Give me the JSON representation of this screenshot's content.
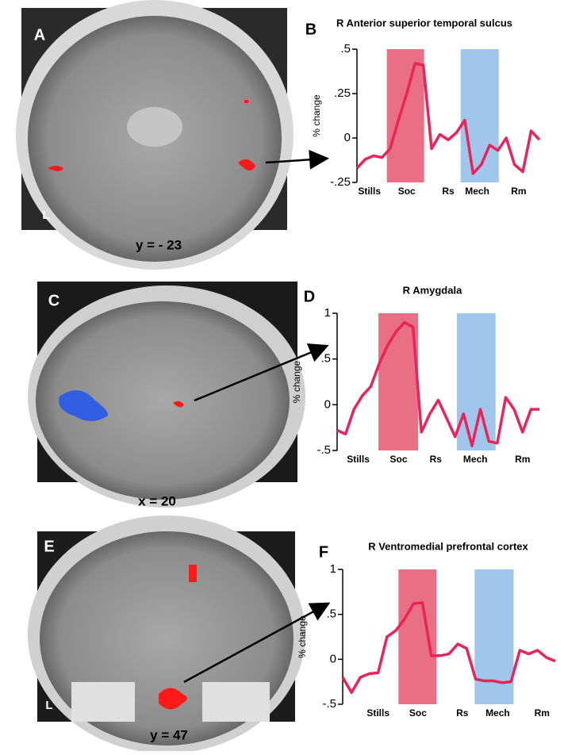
{
  "images": [
    {
      "label": "A",
      "caption": "y = - 23",
      "side": "L"
    },
    {
      "label": "C",
      "caption": "x = 20"
    },
    {
      "label": "E",
      "caption": "y = 47",
      "side": "L"
    }
  ],
  "chart_data": [
    {
      "type": "line",
      "label": "B",
      "title": "R Anterior superior temporal sulcus",
      "ylabel": "% change",
      "x": [
        0,
        1,
        2,
        3,
        4,
        5,
        6,
        7,
        8,
        9,
        10,
        11,
        12,
        13,
        14,
        15,
        16,
        17,
        18,
        19,
        20,
        21,
        22
      ],
      "series": [
        {
          "color": "#e8245a",
          "values": [
            -0.17,
            -0.12,
            -0.1,
            -0.11,
            -0.06,
            0.1,
            0.25,
            0.42,
            0.41,
            -0.06,
            0.02,
            -0.01,
            0.03,
            0.1,
            -0.2,
            -0.15,
            -0.04,
            -0.07,
            0.0,
            -0.15,
            -0.19,
            0.04,
            -0.01
          ]
        }
      ],
      "spans": [
        {
          "xmin": 3.6,
          "xmax": 8.1,
          "color": "#e4566f"
        },
        {
          "xmin": 12.5,
          "xmax": 17.1,
          "color": "#8fbce9"
        }
      ],
      "xlim": [
        0,
        22
      ],
      "ylim": [
        -0.25,
        0.5
      ],
      "xticks": [
        {
          "value": 1.5,
          "label": "Stills"
        },
        {
          "value": 6,
          "label": "Soc"
        },
        {
          "value": 11,
          "label": "Rs"
        },
        {
          "value": 14.5,
          "label": "Mech"
        },
        {
          "value": 19.5,
          "label": "Rm"
        }
      ],
      "yticks": [
        {
          "value": 0.5,
          "label": ".5"
        },
        {
          "value": 0.25,
          "label": ".25"
        },
        0,
        {
          "value": -0.25,
          "label": "-.25"
        }
      ]
    },
    {
      "type": "line",
      "label": "D",
      "title": "R Amygdala",
      "ylabel": "% change",
      "x": [
        0,
        1,
        2,
        3,
        4,
        5,
        6,
        7,
        8,
        9,
        10,
        11,
        12,
        13,
        14,
        15,
        16,
        17,
        18,
        19,
        20,
        21,
        22,
        23,
        24
      ],
      "series": [
        {
          "color": "#e8245a",
          "values": [
            -0.28,
            -0.32,
            -0.05,
            0.1,
            0.2,
            0.45,
            0.65,
            0.8,
            0.9,
            0.85,
            -0.3,
            -0.1,
            0.05,
            -0.15,
            -0.35,
            -0.1,
            -0.45,
            -0.05,
            -0.4,
            -0.42,
            0.08,
            -0.05,
            -0.3,
            -0.05,
            -0.05
          ]
        }
      ],
      "spans": [
        {
          "xmin": 4.9,
          "xmax": 9.6,
          "color": "#e4566f"
        },
        {
          "xmin": 14.2,
          "xmax": 18.8,
          "color": "#8fbce9"
        }
      ],
      "xlim": [
        0,
        24
      ],
      "ylim": [
        -0.5,
        1
      ],
      "xticks": [
        {
          "value": 2.5,
          "label": "Stills"
        },
        {
          "value": 7.3,
          "label": "Soc"
        },
        {
          "value": 11.7,
          "label": "Rs"
        },
        {
          "value": 16.4,
          "label": "Mech"
        },
        {
          "value": 22,
          "label": "Rm"
        }
      ],
      "yticks": [
        1,
        {
          "value": 0.5,
          "label": ".5"
        },
        0,
        {
          "value": -0.5,
          "label": "-.5"
        }
      ]
    },
    {
      "type": "line",
      "label": "F",
      "title": "R Ventromedial prefrontal cortex",
      "ylabel": "% change",
      "x": [
        0,
        1,
        2,
        3,
        4,
        5,
        6,
        7,
        8,
        9,
        10,
        11,
        12,
        13,
        14,
        15,
        16,
        17,
        18,
        19,
        20,
        21,
        22,
        23,
        24
      ],
      "series": [
        {
          "color": "#e8245a",
          "values": [
            -0.2,
            -0.37,
            -0.2,
            -0.16,
            -0.15,
            0.25,
            0.32,
            0.45,
            0.62,
            0.63,
            0.04,
            0.04,
            0.06,
            0.17,
            0.12,
            -0.22,
            -0.24,
            -0.24,
            -0.26,
            -0.25,
            0.1,
            0.06,
            0.1,
            0.02,
            -0.02
          ]
        }
      ],
      "spans": [
        {
          "xmin": 6.3,
          "xmax": 10.6,
          "color": "#e4566f"
        },
        {
          "xmin": 14.9,
          "xmax": 19.3,
          "color": "#8fbce9"
        }
      ],
      "xlim": [
        0,
        24
      ],
      "ylim": [
        -0.5,
        1
      ],
      "xticks": [
        {
          "value": 4,
          "label": "Stills"
        },
        {
          "value": 8.5,
          "label": "Soc"
        },
        {
          "value": 13.5,
          "label": "Rs"
        },
        {
          "value": 17.5,
          "label": "Mech"
        },
        {
          "value": 22.5,
          "label": "Rm"
        }
      ],
      "yticks": [
        1,
        {
          "value": 0.5,
          "label": ".5"
        },
        0,
        {
          "value": -0.5,
          "label": "-.5"
        }
      ]
    }
  ]
}
